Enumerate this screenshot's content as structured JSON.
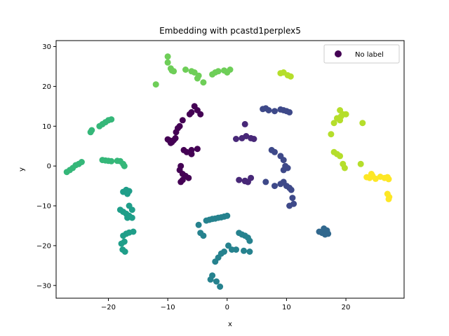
{
  "chart_data": {
    "type": "scatter",
    "title": "Embedding with pcastd1perplex5",
    "xlabel": "x",
    "ylabel": "y",
    "xlim": [
      -28.8,
      29.8
    ],
    "ylim": [
      -33.2,
      31.5
    ],
    "xticks": [
      -20,
      -10,
      0,
      10,
      20
    ],
    "yticks": [
      -30,
      -20,
      -10,
      0,
      10,
      20,
      30
    ],
    "grid": false,
    "legend": {
      "position": "top-right",
      "entries": [
        "No label"
      ],
      "marker_color": "#440154"
    },
    "colormap": "viridis",
    "clusters": [
      {
        "color": "#440154",
        "x": [
          -7.5,
          -8,
          -8.3,
          -8.6,
          -8.7,
          -9,
          -9.3,
          -9.5,
          -9.8,
          -10,
          -7.3,
          -6.8,
          -6,
          -5,
          -6,
          -7.8,
          -8,
          -7.5,
          -7,
          -6.5,
          -7.5,
          -7.8,
          -5.5,
          -5,
          -4.5,
          -6,
          -6.3
        ],
        "y": [
          11.5,
          10,
          9.5,
          8.5,
          7,
          6.5,
          6,
          5.8,
          6.5,
          6.7,
          4,
          3.5,
          4,
          4.3,
          3,
          0,
          -1,
          -2,
          -2.5,
          -3,
          -3.5,
          -4,
          15,
          14,
          13,
          13.5,
          13
        ]
      },
      {
        "color": "#482878",
        "x": [
          3,
          2.5,
          3.2,
          4,
          4.5,
          1.5,
          2,
          3,
          3.5,
          4,
          3,
          3.5
        ],
        "y": [
          10.5,
          7,
          7.5,
          7,
          6.8,
          6.8,
          -3.5,
          -3.8,
          -4,
          -3,
          -3.7,
          -4
        ]
      },
      {
        "color": "#3e4989",
        "x": [
          6,
          6.5,
          7,
          8,
          9,
          9.5,
          10,
          10.5,
          7.5,
          8,
          9,
          9.5,
          9.8,
          9.5,
          10.2,
          6.5,
          8,
          9,
          9.5,
          10,
          10.5,
          10.8,
          11,
          11.2,
          10.5
        ],
        "y": [
          14.3,
          14.5,
          14,
          13.8,
          14.2,
          14,
          13.8,
          13.5,
          4,
          3.5,
          2.5,
          1.5,
          0,
          -1,
          -0.5,
          -4,
          -5,
          -4.5,
          -4,
          -5,
          -5.5,
          -6,
          -8,
          -9.5,
          -10
        ]
      },
      {
        "color": "#31688e",
        "x": [
          15.5,
          16,
          16.3,
          16.8,
          17,
          16.5
        ],
        "y": [
          -16.5,
          -16.8,
          -15.7,
          -16.2,
          -17,
          -17.2
        ]
      },
      {
        "color": "#26828e",
        "x": [
          -4.8,
          -4.5,
          -4,
          -3.5,
          -3,
          -2.5,
          -2,
          -1.5,
          -1,
          -0.5,
          0,
          2,
          2.5,
          3,
          3.5,
          3.8,
          0.2,
          0.8,
          1.5,
          2.8,
          3.8,
          -0.5,
          -1,
          -1.5,
          -2,
          -2.5,
          -2.8,
          -1.8,
          -1.2
        ],
        "y": [
          -14.8,
          -16.8,
          -17.5,
          -13.7,
          -13.5,
          -13.3,
          -13.2,
          -13,
          -12.9,
          -12.7,
          -12.5,
          -16.8,
          -17.2,
          -17.5,
          -18,
          -18.8,
          -20,
          -21,
          -21,
          -21.3,
          -21.5,
          -21.5,
          -22,
          -23,
          -24,
          -27.5,
          -28.5,
          -29,
          -30.3
        ]
      },
      {
        "color": "#1f9e89",
        "x": [
          -17.5,
          -17,
          -16.8,
          -16.5,
          -16.8,
          -16,
          -16.5,
          -17,
          -17.5,
          -18,
          -16.8,
          -16.5,
          -16,
          -15.8,
          -16.5,
          -17,
          -17.5,
          -17.3,
          -17.8,
          -17.6,
          -17.2
        ],
        "y": [
          -6.5,
          -6,
          -6.8,
          -6.3,
          -7,
          -11,
          -10,
          -12,
          -11.5,
          -11,
          -13,
          -12.5,
          -13,
          -16.5,
          -16.7,
          -17,
          -17.5,
          -19,
          -19.5,
          -21,
          -21.5
        ]
      },
      {
        "color": "#35b779",
        "x": [
          -21.5,
          -21,
          -20.5,
          -20,
          -19.5,
          -23,
          -22.8,
          -21,
          -20.5,
          -20,
          -19.5,
          -18.5,
          -18,
          -17.5,
          -17.3,
          -27,
          -26.5,
          -26,
          -25.5,
          -25,
          -24.5
        ],
        "y": [
          10,
          10.5,
          11,
          11.5,
          11.7,
          8.5,
          9,
          1.5,
          1.4,
          1.3,
          1.2,
          1.3,
          1.2,
          0.5,
          0,
          -1.5,
          -1,
          -0.5,
          0.2,
          0.5,
          1
        ]
      },
      {
        "color": "#6ece58",
        "x": [
          -10,
          -10,
          -9.5,
          -9.3,
          -9,
          -12,
          -7,
          -6,
          -5.5,
          -4.8,
          -5,
          -4,
          -2.5,
          -2,
          -1.5,
          -0.5,
          0,
          0.5
        ],
        "y": [
          27.5,
          26,
          24.5,
          24,
          23.8,
          20.5,
          24.2,
          23.8,
          23.5,
          22.7,
          22,
          21,
          23,
          23.5,
          23.8,
          24,
          23.5,
          24.2
        ]
      },
      {
        "color": "#b5de2b",
        "x": [
          9,
          9.5,
          10.2,
          10.7,
          19,
          19.5,
          20,
          18.5,
          18,
          19,
          19.2,
          17.5,
          18,
          18.5,
          19,
          19.5,
          19.8,
          22.5,
          22.8
        ],
        "y": [
          23.3,
          23.5,
          22.8,
          22.5,
          14,
          13,
          13,
          12,
          10.8,
          11.5,
          12.5,
          8,
          3.5,
          3,
          2.5,
          0.5,
          -0.5,
          0.5,
          10.8
        ]
      },
      {
        "color": "#fde725",
        "x": [
          23.5,
          24,
          24.5,
          24.3,
          25,
          25.8,
          26.5,
          27,
          27.2,
          27,
          27.3,
          27.2
        ],
        "y": [
          -2.8,
          -3,
          -2.5,
          -2,
          -3.2,
          -2.7,
          -3,
          -2.8,
          -3.3,
          -7,
          -7.8,
          -8.3
        ]
      }
    ]
  }
}
